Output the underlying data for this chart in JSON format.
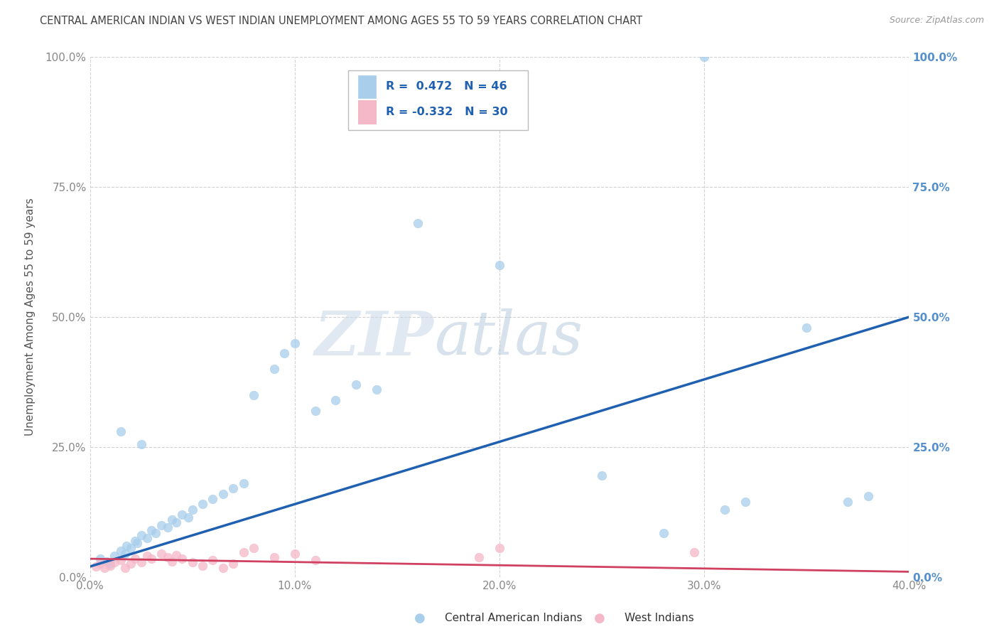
{
  "title": "CENTRAL AMERICAN INDIAN VS WEST INDIAN UNEMPLOYMENT AMONG AGES 55 TO 59 YEARS CORRELATION CHART",
  "source": "Source: ZipAtlas.com",
  "ylabel": "Unemployment Among Ages 55 to 59 years",
  "xlim": [
    0.0,
    0.4
  ],
  "ylim": [
    0.0,
    1.0
  ],
  "xticks": [
    0.0,
    0.1,
    0.2,
    0.3,
    0.4
  ],
  "yticks": [
    0.0,
    0.25,
    0.5,
    0.75,
    1.0
  ],
  "xticklabels": [
    "0.0%",
    "10.0%",
    "20.0%",
    "30.0%",
    "40.0%"
  ],
  "yticklabels": [
    "0.0%",
    "25.0%",
    "50.0%",
    "75.0%",
    "100.0%"
  ],
  "blue_scatter_x": [
    0.005,
    0.008,
    0.01,
    0.012,
    0.015,
    0.017,
    0.018,
    0.02,
    0.022,
    0.023,
    0.025,
    0.028,
    0.03,
    0.032,
    0.035,
    0.038,
    0.04,
    0.042,
    0.045,
    0.048,
    0.05,
    0.055,
    0.06,
    0.065,
    0.07,
    0.075,
    0.08,
    0.09,
    0.095,
    0.1,
    0.11,
    0.12,
    0.13,
    0.14,
    0.16,
    0.2,
    0.25,
    0.28,
    0.3,
    0.31,
    0.32,
    0.35,
    0.37,
    0.38,
    0.015,
    0.025
  ],
  "blue_scatter_y": [
    0.035,
    0.03,
    0.025,
    0.04,
    0.05,
    0.045,
    0.06,
    0.055,
    0.07,
    0.065,
    0.08,
    0.075,
    0.09,
    0.085,
    0.1,
    0.095,
    0.11,
    0.105,
    0.12,
    0.115,
    0.13,
    0.14,
    0.15,
    0.16,
    0.17,
    0.18,
    0.35,
    0.4,
    0.43,
    0.45,
    0.32,
    0.34,
    0.37,
    0.36,
    0.68,
    0.6,
    0.195,
    0.085,
    1.0,
    0.13,
    0.145,
    0.48,
    0.145,
    0.155,
    0.28,
    0.255
  ],
  "pink_scatter_x": [
    0.003,
    0.005,
    0.007,
    0.01,
    0.012,
    0.015,
    0.017,
    0.02,
    0.022,
    0.025,
    0.028,
    0.03,
    0.035,
    0.038,
    0.04,
    0.042,
    0.045,
    0.05,
    0.055,
    0.06,
    0.065,
    0.07,
    0.075,
    0.08,
    0.09,
    0.1,
    0.11,
    0.19,
    0.2,
    0.295
  ],
  "pink_scatter_y": [
    0.02,
    0.025,
    0.018,
    0.022,
    0.028,
    0.032,
    0.018,
    0.025,
    0.035,
    0.028,
    0.04,
    0.035,
    0.045,
    0.038,
    0.03,
    0.042,
    0.035,
    0.028,
    0.022,
    0.032,
    0.018,
    0.025,
    0.048,
    0.055,
    0.038,
    0.045,
    0.032,
    0.038,
    0.055,
    0.048
  ],
  "blue_line_x": [
    0.0,
    0.4
  ],
  "blue_line_y": [
    0.02,
    0.5
  ],
  "pink_line_x": [
    0.0,
    0.4
  ],
  "pink_line_y": [
    0.035,
    0.01
  ],
  "blue_dot_color": "#A8CEEC",
  "pink_dot_color": "#F5B8C8",
  "blue_line_color": "#2060B0",
  "pink_line_color": "#D04060",
  "legend_r_blue": "R =  0.472",
  "legend_n_blue": "N = 46",
  "legend_r_pink": "R = -0.332",
  "legend_n_pink": "N = 30",
  "legend_label_blue": "Central American Indians",
  "legend_label_pink": "West Indians",
  "watermark": "ZIPatlas",
  "bg_color": "#FFFFFF",
  "title_color": "#444444",
  "axis_label_color": "#555555",
  "left_tick_color": "#888888",
  "right_tick_color": "#5590CC",
  "legend_text_color": "#2060B0"
}
